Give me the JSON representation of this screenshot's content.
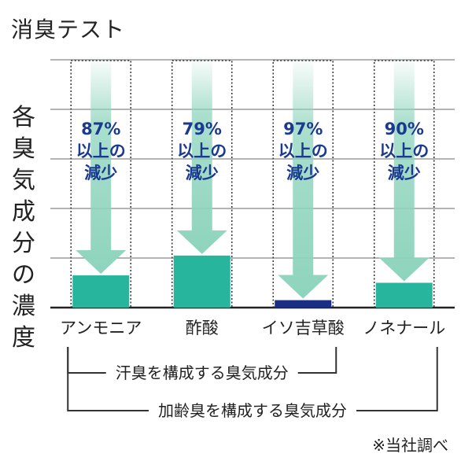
{
  "title": "消臭テスト",
  "ylabel": "各臭気成分の濃度",
  "note": "※当社調べ",
  "colors": {
    "bar": "#27b59d",
    "bar_highlight": "#1a2f84",
    "arrow": "#8ed4bd",
    "label": "#1a3a8f",
    "grid": "#888888",
    "axis": "#222222"
  },
  "chart_data": {
    "type": "bar",
    "title": "消臭テスト",
    "ylabel": "各臭気成分の濃度",
    "categories": [
      "アンモニア",
      "酢酸",
      "イソ吉草酸",
      "ノネナール"
    ],
    "values": [
      13,
      21,
      3,
      10
    ],
    "reduction_labels": [
      [
        "87%",
        "以上の",
        "減少"
      ],
      [
        "79%",
        "以上の",
        "減少"
      ],
      [
        "97%",
        "以上の",
        "減少"
      ],
      [
        "90%",
        "以上の",
        "減少"
      ]
    ],
    "ylim": [
      0,
      100
    ],
    "grid": true,
    "brackets": [
      {
        "label": "汗臭を構成する臭気成分",
        "from": 0,
        "to": 2
      },
      {
        "label": "加齢臭を構成する臭気成分",
        "from": 0,
        "to": 3
      }
    ]
  }
}
